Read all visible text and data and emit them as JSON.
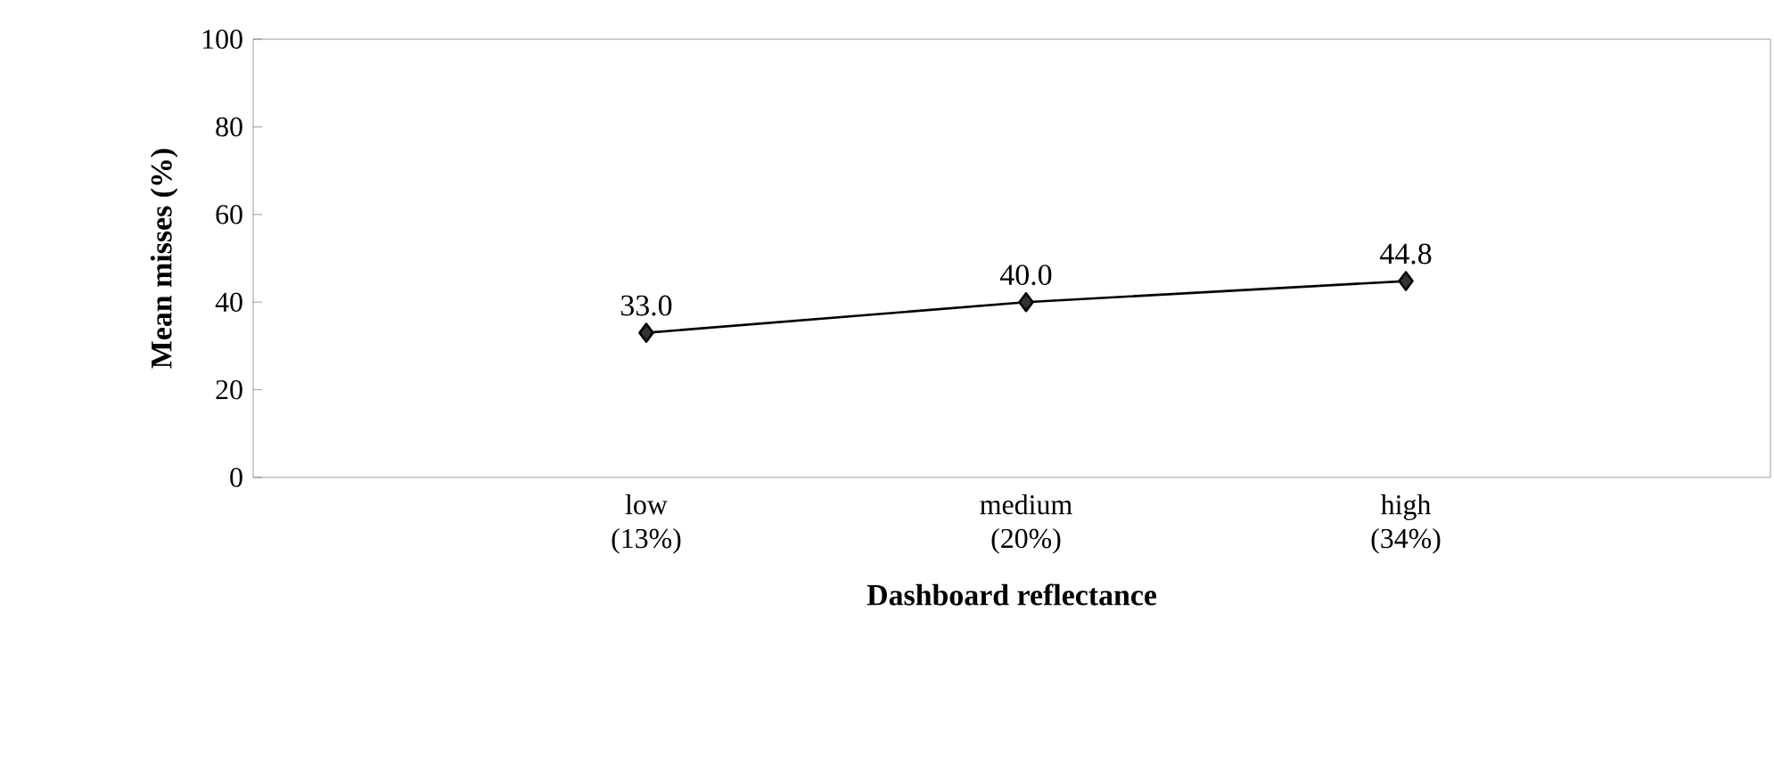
{
  "chart_data": {
    "type": "line",
    "xlabel": "Dashboard reflectance",
    "ylabel": "Mean misses (%)",
    "categories": [
      "low (13%)",
      "medium (20%)",
      "high (34%)"
    ],
    "series": [
      {
        "color": "#000000",
        "values": [
          33.0,
          40.0,
          44.8
        ],
        "value_labels": [
          "33.0",
          "40.0",
          "44.8"
        ]
      }
    ],
    "ylim": [
      0,
      100
    ],
    "yticks": [
      0,
      20,
      40,
      60,
      80,
      100
    ],
    "grid": false,
    "marker": "diamond",
    "line_style": "solid"
  }
}
